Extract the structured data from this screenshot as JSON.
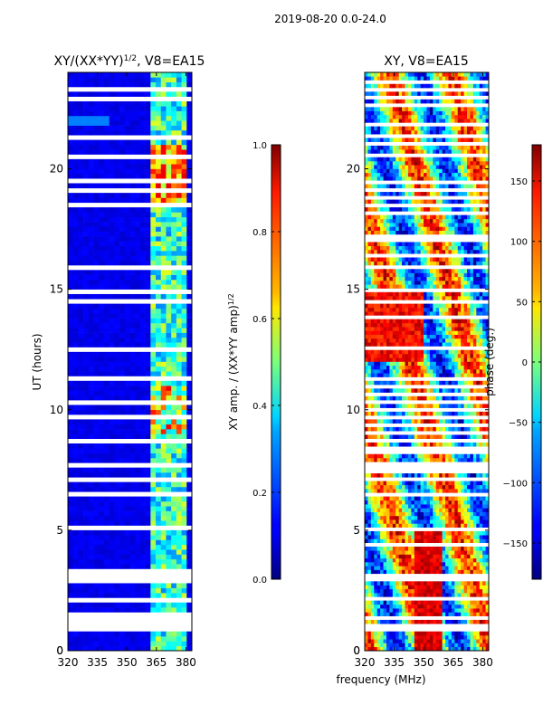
{
  "chart_data": {
    "suptitle": "2019-08-20 0.0-24.0",
    "shared_xlabel": "frequency (MHz)",
    "panels": [
      {
        "type": "heatmap",
        "title": "XY/(XX*YY)",
        "title_superscript": "1/2",
        "title_suffix": ", V8=EA15",
        "x_range": [
          320,
          383
        ],
        "x_ticks": [
          320,
          335,
          350,
          365,
          380
        ],
        "y_range": [
          0,
          24
        ],
        "y_ticks": [
          0,
          5,
          10,
          15,
          20
        ],
        "ylabel": "UT (hours)",
        "colorbar": {
          "label": "XY amp. / (XX*YY amp)",
          "label_superscript": "1/2",
          "range": [
            0.0,
            1.0
          ],
          "ticks": [
            0.0,
            0.2,
            0.4,
            0.6,
            0.8,
            1.0
          ],
          "tick_labels": [
            "0.0",
            "0.2",
            "0.4",
            "0.6",
            "0.8",
            "1.0"
          ]
        }
      },
      {
        "type": "heatmap",
        "title": "XY, V8=EA15",
        "x_range": [
          320,
          383
        ],
        "x_ticks": [
          320,
          335,
          350,
          365,
          380
        ],
        "y_range": [
          0,
          24
        ],
        "y_ticks": [
          0,
          5,
          10,
          15,
          20
        ],
        "ylabel": "",
        "colorbar": {
          "label": "phase (deg.)",
          "range": [
            -180,
            180
          ],
          "ticks": [
            -150,
            -100,
            -50,
            0,
            50,
            100,
            150
          ],
          "tick_labels": [
            "−150",
            "−100",
            "−50",
            "0",
            "50",
            "100",
            "150"
          ]
        }
      }
    ],
    "flagged_rows_ut_hours": [
      0.9,
      1.05,
      1.3,
      1.45,
      2.1,
      2.9,
      3.1,
      3.35,
      4.4,
      4.8,
      5.1,
      6.5,
      7.1,
      7.4,
      7.65,
      7.8,
      8.2,
      8.4,
      8.75,
      9.0,
      9.4,
      9.7,
      10.0,
      10.3,
      10.6,
      11.0,
      11.3,
      12.5,
      12.8,
      13.8,
      14.5,
      14.9,
      15.2,
      15.9,
      16.4,
      17.0,
      17.2,
      17.6,
      18.2,
      18.5,
      18.8,
      19.1,
      19.5,
      20.5,
      21.0,
      21.3,
      21.8,
      22.6,
      22.9,
      23.3,
      23.6
    ]
  }
}
